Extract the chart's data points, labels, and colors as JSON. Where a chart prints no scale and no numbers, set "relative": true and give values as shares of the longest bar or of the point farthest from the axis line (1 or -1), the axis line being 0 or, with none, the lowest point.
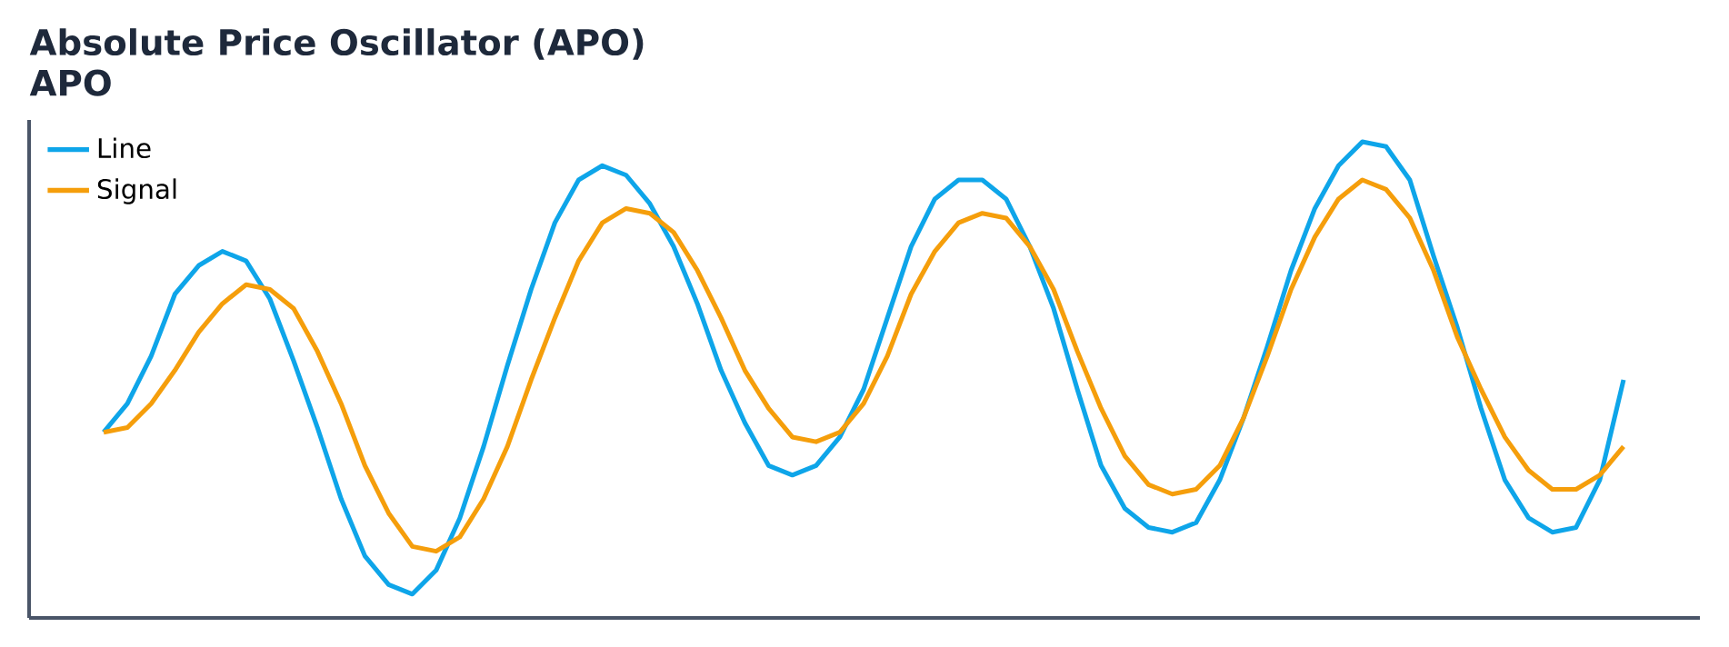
{
  "chart_data": {
    "type": "line",
    "title": "Absolute Price Oscillator (APO)",
    "subtitle": "APO",
    "relative": true,
    "legend": "top left",
    "marker": "none",
    "line_style": "solid",
    "categories": [
      null,
      null,
      null,
      null,
      null,
      null,
      null,
      null,
      null,
      null,
      null,
      null,
      null,
      null,
      null,
      null,
      null,
      null,
      null,
      null,
      null,
      null,
      null,
      null,
      null,
      null,
      null,
      null,
      null,
      null,
      null,
      null,
      null,
      null,
      null,
      null,
      null,
      null,
      null,
      null,
      null,
      null,
      null,
      null,
      null,
      null,
      null,
      null,
      null,
      null,
      null,
      null,
      null,
      null,
      null,
      null,
      null,
      null,
      null,
      null,
      null,
      null,
      null,
      null,
      null
    ],
    "series": [
      {
        "name": "Line",
        "color": "#0ea5e9",
        "values": [
          0.39,
          0.45,
          0.55,
          0.68,
          0.74,
          0.77,
          0.75,
          0.67,
          0.54,
          0.4,
          0.25,
          0.13,
          0.07,
          0.05,
          0.1,
          0.21,
          0.36,
          0.53,
          0.69,
          0.83,
          0.92,
          0.95,
          0.93,
          0.87,
          0.78,
          0.66,
          0.52,
          0.41,
          0.32,
          0.3,
          0.32,
          0.38,
          0.48,
          0.63,
          0.78,
          0.88,
          0.92,
          0.92,
          0.88,
          0.78,
          0.65,
          0.48,
          0.32,
          0.23,
          0.19,
          0.18,
          0.2,
          0.29,
          0.42,
          0.57,
          0.73,
          0.86,
          0.95,
          1.0,
          0.99,
          0.92,
          0.76,
          0.61,
          0.44,
          0.29,
          0.21,
          0.18,
          0.19,
          0.29,
          0.5
        ]
      },
      {
        "name": "Signal",
        "color": "#f59e0b",
        "values": [
          0.39,
          0.4,
          0.45,
          0.52,
          0.6,
          0.66,
          0.7,
          0.69,
          0.65,
          0.56,
          0.45,
          0.32,
          0.22,
          0.15,
          0.14,
          0.17,
          0.25,
          0.36,
          0.5,
          0.63,
          0.75,
          0.83,
          0.86,
          0.85,
          0.81,
          0.73,
          0.63,
          0.52,
          0.44,
          0.38,
          0.37,
          0.39,
          0.45,
          0.55,
          0.68,
          0.77,
          0.83,
          0.85,
          0.84,
          0.78,
          0.69,
          0.56,
          0.44,
          0.34,
          0.28,
          0.26,
          0.27,
          0.32,
          0.42,
          0.55,
          0.69,
          0.8,
          0.88,
          0.92,
          0.9,
          0.84,
          0.73,
          0.59,
          0.48,
          0.38,
          0.31,
          0.27,
          0.27,
          0.3,
          0.36
        ]
      }
    ]
  }
}
